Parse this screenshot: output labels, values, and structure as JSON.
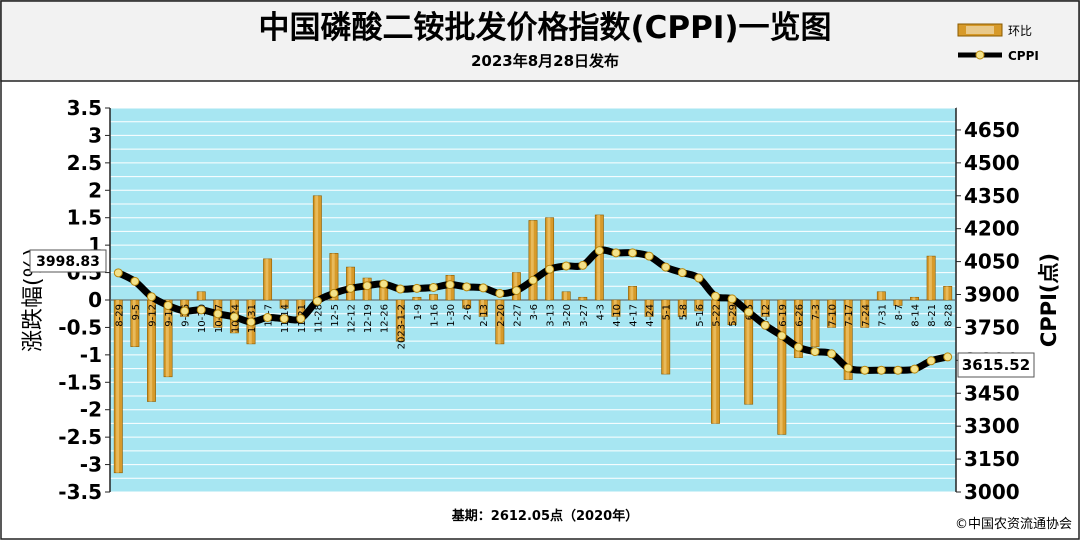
{
  "header": {
    "title": "中国磷酸二铵批发价格指数(CPPI)一览图",
    "subtitle": "2023年8月28日发布"
  },
  "legend": {
    "bar_label": "环比",
    "line_label": "CPPI",
    "placement": "top-right"
  },
  "footer": {
    "base": "基期：2612.05点（2020年）",
    "copyright": "©中国农资流通协会"
  },
  "callouts": {
    "start_value": "3998.83",
    "end_value": "3615.52"
  },
  "colors": {
    "plot_bg": "#a7e6f2",
    "grid": "#ffffff",
    "bar": "#d79a2a",
    "line": "#000000",
    "marker": "#f3e28a"
  },
  "chart_data": {
    "type": "bar+line",
    "categories": [
      "8-29",
      "9-5",
      "9-12",
      "9-19",
      "9-26",
      "10-10",
      "10-17",
      "10-24",
      "10-31",
      "11-7",
      "11-14",
      "11-21",
      "11-28",
      "12-5",
      "12-12",
      "12-19",
      "12-26",
      "2023-1-2",
      "1-9",
      "1-16",
      "1-30",
      "2-6",
      "2-13",
      "2-20",
      "2-27",
      "3-6",
      "3-13",
      "3-20",
      "3-27",
      "4-3",
      "4-10",
      "4-17",
      "4-24",
      "5-1",
      "5-8",
      "5-16",
      "5-22",
      "5-29",
      "6-5",
      "6-12",
      "6-19",
      "6-26",
      "7-3",
      "7-10",
      "7-17",
      "7-24",
      "7-31",
      "8-7",
      "8-14",
      "8-21",
      "8-28"
    ],
    "series": [
      {
        "name": "环比",
        "type": "bar",
        "axis": "left",
        "values": [
          -3.15,
          -0.85,
          -1.85,
          -1.4,
          -0.3,
          0.15,
          -0.5,
          -0.6,
          -0.8,
          0.75,
          -0.15,
          -0.35,
          1.9,
          0.85,
          0.6,
          0.4,
          0.25,
          -0.75,
          0.05,
          0.1,
          0.45,
          -0.15,
          -0.3,
          -0.8,
          0.5,
          1.45,
          1.5,
          0.15,
          0.05,
          1.55,
          -0.3,
          0.25,
          -0.3,
          -1.35,
          -0.3,
          -0.2,
          -2.25,
          -0.45,
          -1.9,
          -0.3,
          -2.45,
          -1.05,
          -0.85,
          -0.5,
          -1.45,
          -0.5,
          0.15,
          -0.1,
          0.05,
          0.8,
          0.25
        ]
      },
      {
        "name": "CPPI",
        "type": "line",
        "axis": "right",
        "values": [
          3998.83,
          3960,
          3890,
          3850,
          3825,
          3830,
          3812,
          3798,
          3775,
          3795,
          3790,
          3790,
          3870,
          3905,
          3928,
          3940,
          3948,
          3925,
          3928,
          3932,
          3945,
          3935,
          3930,
          3905,
          3918,
          3965,
          4015,
          4030,
          4033,
          4100,
          4090,
          4090,
          4075,
          4025,
          4000,
          3975,
          3892,
          3880,
          3820,
          3760,
          3712,
          3660,
          3640,
          3630,
          3565,
          3555,
          3555,
          3555,
          3560,
          3598,
          3615.52
        ]
      }
    ],
    "left_axis": {
      "label": "涨跌幅(%)",
      "ylim": [
        -3.5,
        3.5
      ],
      "ticks": [
        "3.5",
        "3",
        "2.5",
        "2",
        "1.5",
        "1",
        "0.5",
        "0",
        "-0.5",
        "-1",
        "-1.5",
        "-2",
        "-2.5",
        "-3",
        "-3.5"
      ]
    },
    "right_axis": {
      "label": "CPPI(点)",
      "ylim": [
        3000,
        4750
      ],
      "ticks": [
        "4650",
        "4500",
        "4350",
        "4200",
        "4050",
        "3900",
        "3750",
        "3600",
        "3450",
        "3300",
        "3150",
        "3000"
      ]
    },
    "grid": true
  }
}
